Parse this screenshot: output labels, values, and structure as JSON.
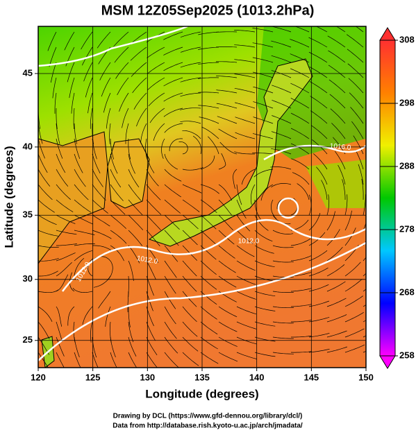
{
  "chart_data": {
    "type": "map",
    "title": "MSM 12Z05Sep2025 (1013.2hPa)",
    "x_label": "Longitude (degrees)",
    "y_label": "Latitude  (degrees)",
    "xlim": [
      120,
      150
    ],
    "ylim": [
      22.7,
      48
    ],
    "xticks": [
      120,
      125,
      130,
      135,
      140,
      145,
      150
    ],
    "yticks": [
      25,
      30,
      35,
      40,
      45
    ],
    "grid": true,
    "colorbar": {
      "lim": [
        258,
        308
      ],
      "ticks": [
        258,
        268,
        278,
        288,
        298,
        308
      ],
      "colors": [
        "#ff00ff",
        "#0000ff",
        "#00c8ff",
        "#00c800",
        "#f0f000",
        "#ff8000",
        "#ff3030"
      ]
    },
    "contour_labels": [
      "1012.0",
      "1012.0",
      "1012.0",
      "1016.0"
    ],
    "credits": [
      "Drawing by DCL (https://www.gfd-dennou.org/library/dcl/)",
      "Data from http://database.rish.kyoto-u.ac.jp/arch/jmadata/"
    ]
  }
}
